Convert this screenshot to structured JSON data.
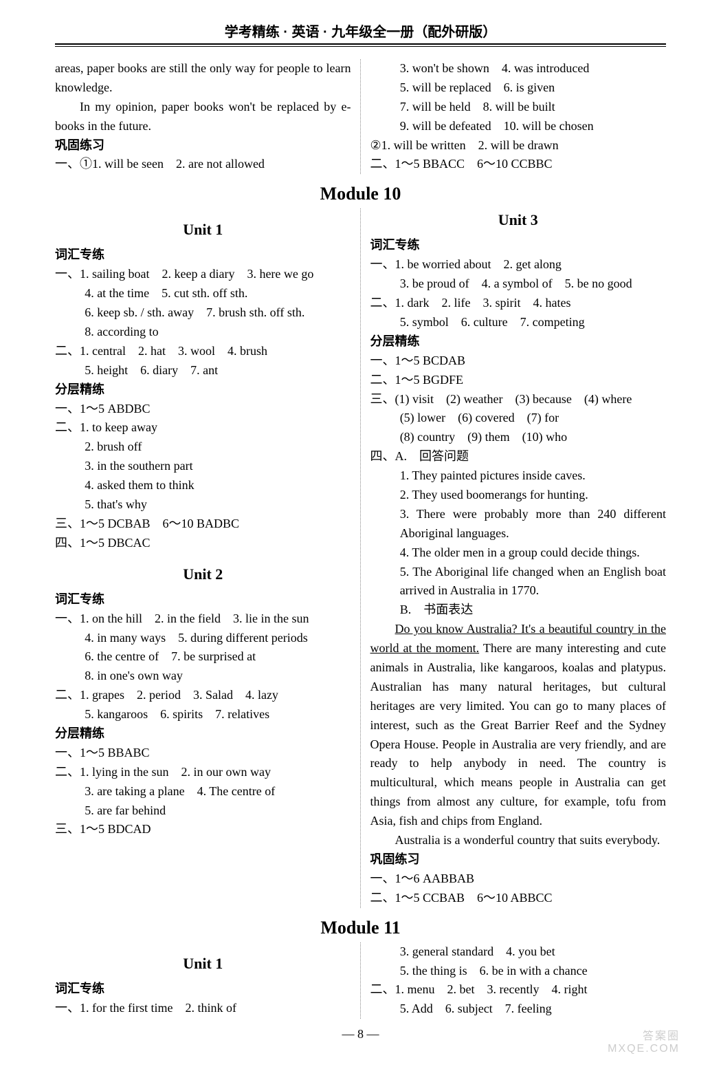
{
  "header": "学考精练 · 英语 · 九年级全一册（配外研版）",
  "page_number": "— 8 —",
  "watermark_top": "答案圈",
  "watermark_bottom": "MXQE.COM",
  "topblock": {
    "p1": "areas, paper books are still the only way for people to learn knowledge.",
    "p2": "In my opinion, paper books won't be replaced by e-books in the future.",
    "sec_gonggu": "巩固练习",
    "left_l1": "一、①1. will be seen　2. are not allowed",
    "r1": "3. won't be shown　4. was introduced",
    "r2": "5. will be replaced　6. is given",
    "r3": "7. will be held　8. will be built",
    "r4": "9. will be defeated　10. will be chosen",
    "r5": "②1. will be written　2. will be drawn",
    "r6": "二、1～5 BBACC　6～10 CCBBC"
  },
  "m10": {
    "title": "Module 10",
    "u1": {
      "title": "Unit 1",
      "sec_cihui": "词汇专练",
      "a1": "一、1. sailing boat　2. keep a diary　3. here we go",
      "a2": "4. at the time　5. cut sth. off sth.",
      "a3": "6. keep sb. / sth. away　7. brush sth. off sth.",
      "a4": "8. according to",
      "a5": "二、1. central　2. hat　3. wool　4. brush",
      "a6": "5. height　6. diary　7. ant",
      "sec_fenceng": "分层精练",
      "f1": "一、1～5 ABDBC",
      "f2": "二、1. to keep away",
      "f3": "2. brush off",
      "f4": "3. in the southern part",
      "f5": "4. asked them to think",
      "f6": "5. that's why",
      "f7": "三、1～5 DCBAB　6～10 BADBC",
      "f8": "四、1～5 DBCAC"
    },
    "u2": {
      "title": "Unit 2",
      "sec_cihui": "词汇专练",
      "a1": "一、1. on the hill　2. in the field　3. lie in the sun",
      "a2": "4. in many ways　5. during different periods",
      "a3": "6. the centre of　7. be surprised at",
      "a4": "8. in one's own way",
      "a5": "二、1. grapes　2. period　3. Salad　4. lazy",
      "a6": "5. kangaroos　6. spirits　7. relatives",
      "sec_fenceng": "分层精练",
      "f1": "一、1～5 BBABC",
      "f2": "二、1. lying in the sun　2. in our own way",
      "f3": "3. are taking a plane　4. The centre of",
      "f4": "5. are far behind",
      "f5": "三、1～5 BDCAD"
    },
    "u3": {
      "title": "Unit 3",
      "sec_cihui": "词汇专练",
      "a1": "一、1. be worried about　2. get along"
    },
    "right": {
      "r0": "3. be proud of　4. a symbol of　5. be no good",
      "r1": "二、1. dark　2. life　3. spirit　4. hates",
      "r2": "5. symbol　6. culture　7. competing",
      "sec_fenceng": "分层精练",
      "f1": "一、1～5 BCDAB",
      "f2": "二、1～5 BGDFE",
      "f3": "三、(1) visit　(2) weather　(3) because　(4) where",
      "f4": "(5) lower　(6) covered　(7) for",
      "f5": "(8) country　(9) them　(10) who",
      "f6": "四、A.　回答问题",
      "q1": "1. They painted pictures inside caves.",
      "q2": "2. They used boomerangs for hunting.",
      "q3": "3. There were probably more than 240 different Aboriginal languages.",
      "q4": "4. The older men in a group could decide things.",
      "q5": "5. The Aboriginal life changed when an English boat arrived in Australia in 1770.",
      "b_label": "B.　书面表达",
      "essay_u1": "Do you know Australia? It's a beautiful country in the world at the moment.",
      "essay_p1": " There are many interesting and cute animals in Australia, like kangaroos, koalas and platypus. Australian has many natural heritages, but cultural heritages are very limited. You can go to many places of interest, such as the Great Barrier Reef and the Sydney Opera House. People in Australia are very friendly, and are ready to help anybody in need. The country is multicultural, which means people in Australia can get things from almost any culture, for example, tofu from Asia, fish and chips from England.",
      "essay_p2": "Australia is a wonderful country that suits everybody.",
      "sec_gonggu": "巩固练习",
      "g1": "一、1～6 AABBAB",
      "g2": "二、1～5 CCBAB　6～10 ABBCC"
    }
  },
  "m11": {
    "title": "Module 11",
    "u1": {
      "title": "Unit 1",
      "sec_cihui": "词汇专练",
      "a1": "一、1. for the first time　2. think of"
    },
    "right": {
      "r1": "3. general standard　4. you bet",
      "r2": "5. the thing is　6. be in with a chance",
      "r3": "二、1. menu　2. bet　3. recently　4. right",
      "r4": "5. Add　6. subject　7. feeling"
    }
  }
}
